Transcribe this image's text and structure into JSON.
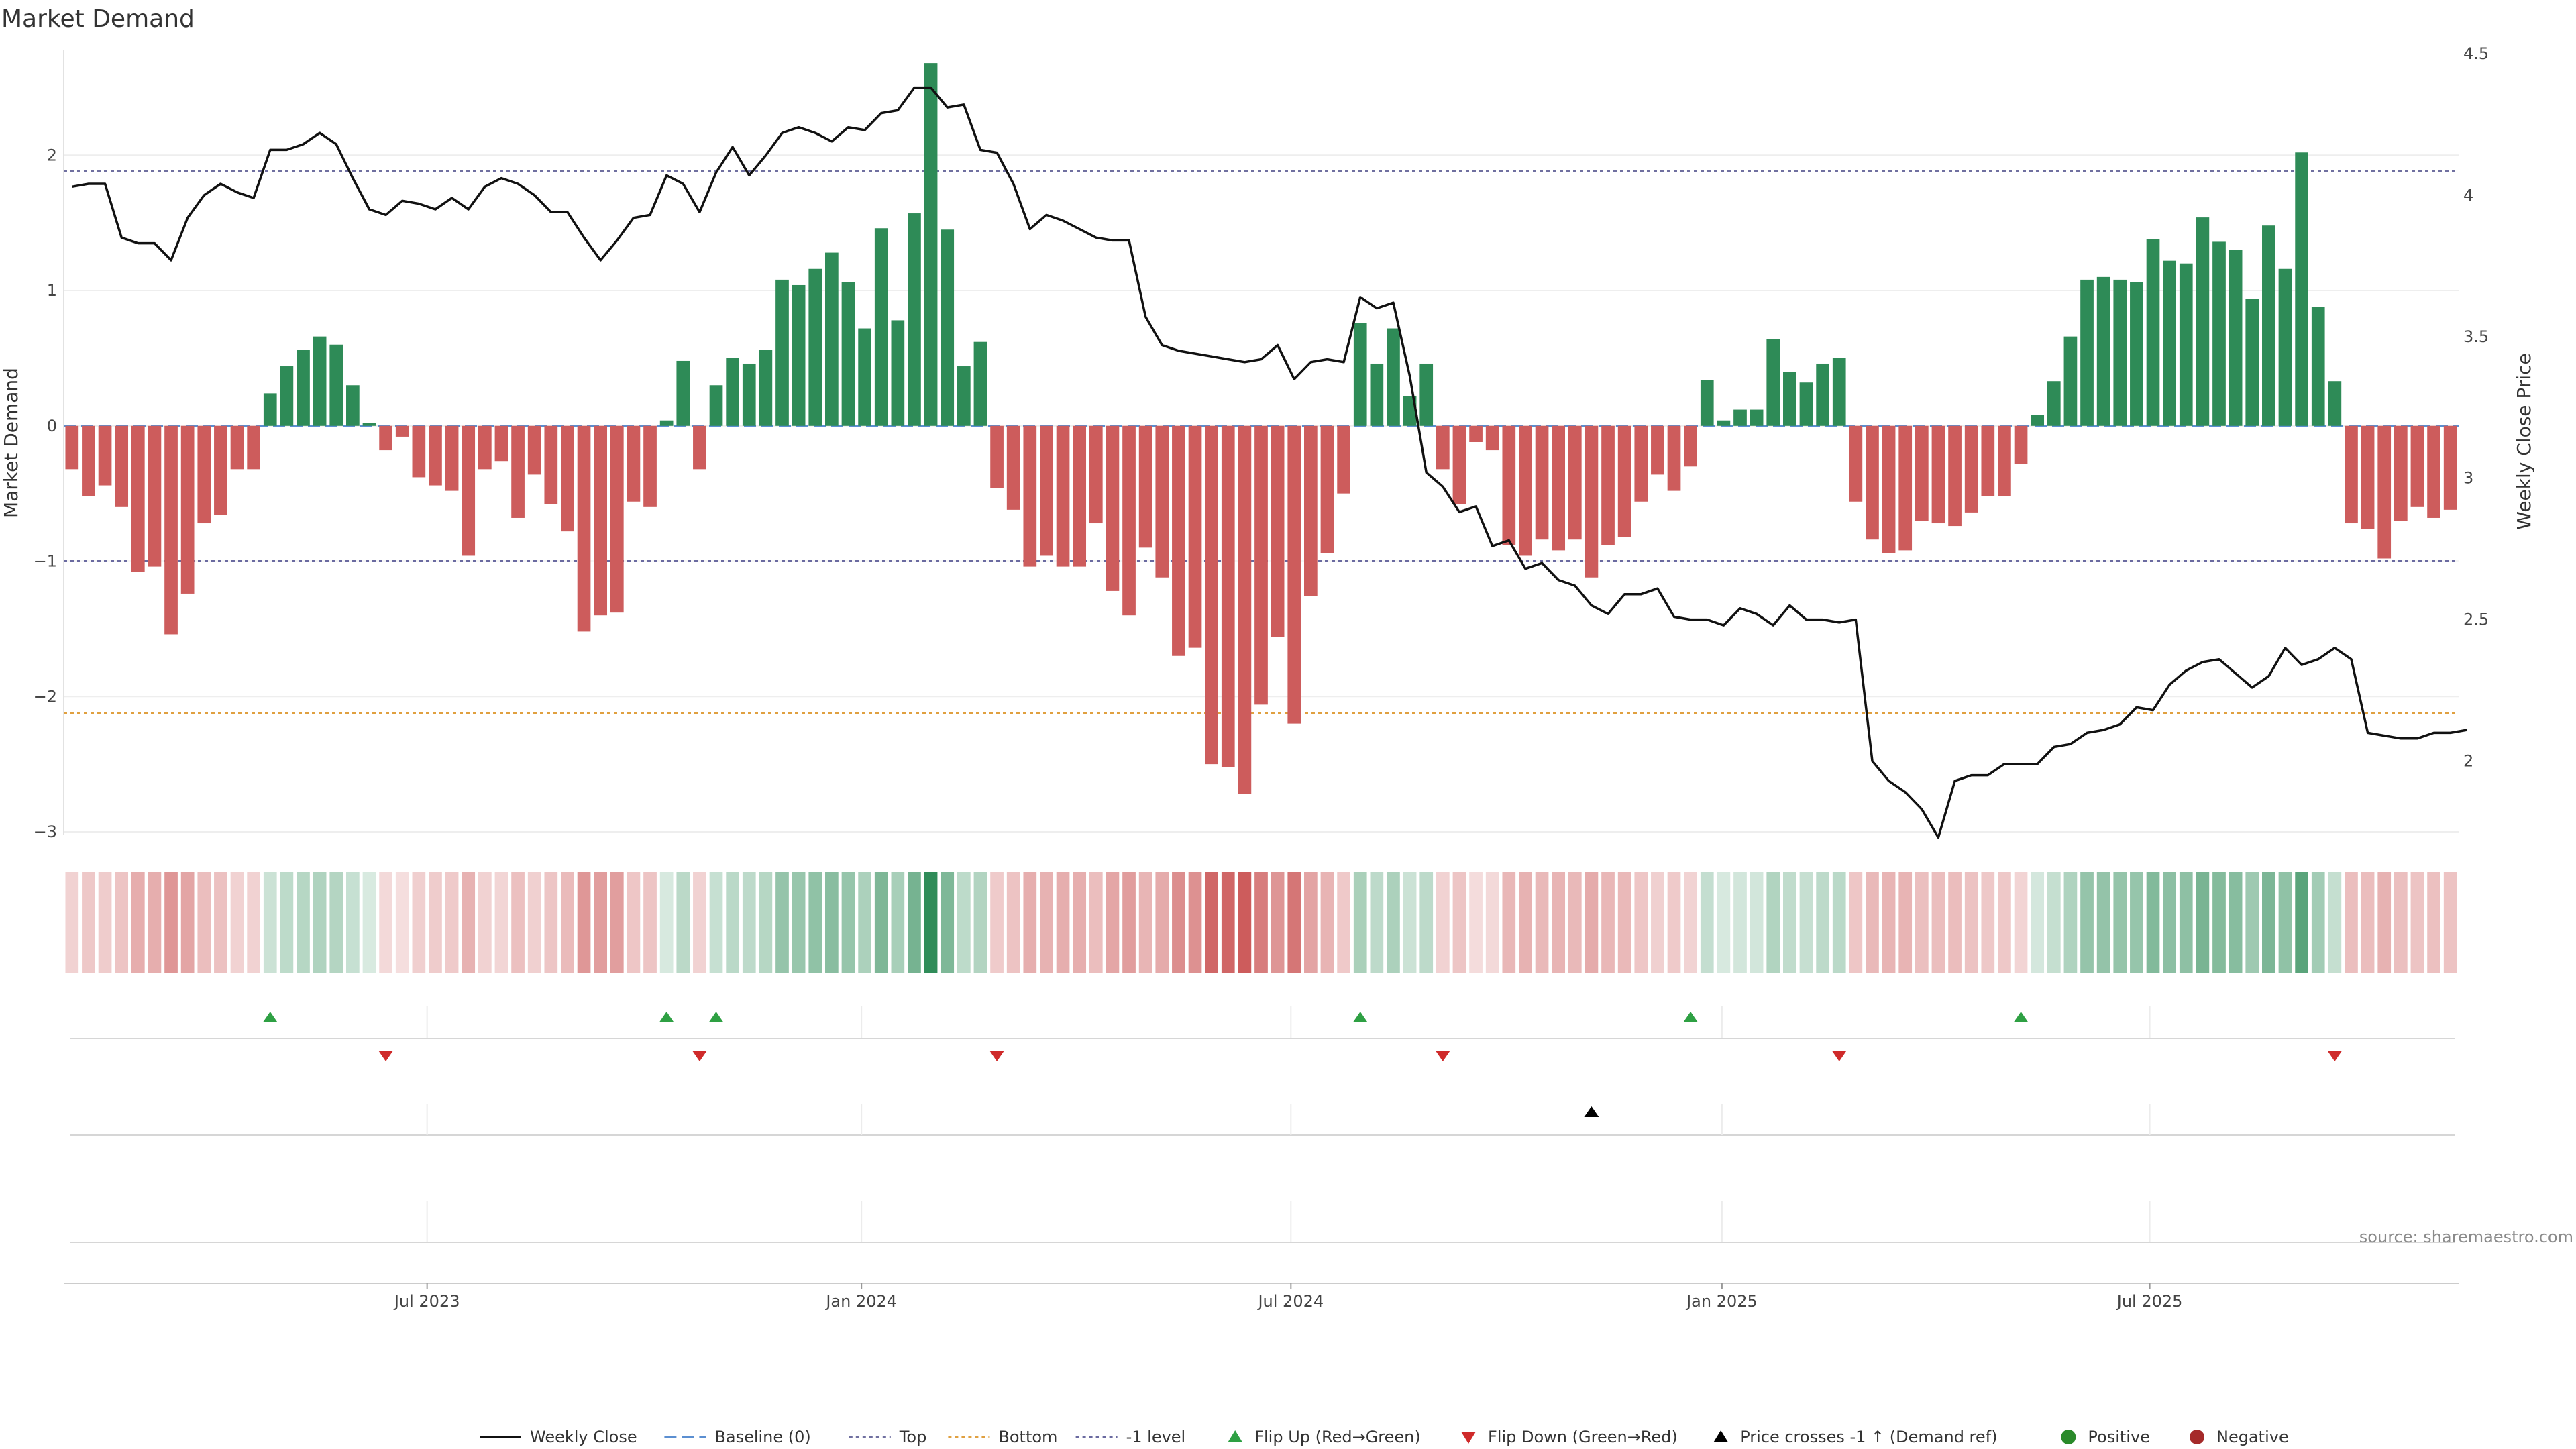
{
  "source_text": "source: sharemaestro.com",
  "chart_data": {
    "type": "bar",
    "title": "Market Demand",
    "ylabel": "Market Demand",
    "y2label": "Weekly Close Price",
    "ylim": [
      -3.0,
      2.75
    ],
    "y2lim": [
      1.75,
      4.5
    ],
    "yticks": [
      2,
      1,
      0,
      -1,
      -2,
      -3
    ],
    "yticks_labels": [
      "2",
      "1",
      "0",
      "−1",
      "−2",
      "−3"
    ],
    "y2ticks": [
      4.5,
      4,
      3.5,
      3,
      2.5,
      2
    ],
    "y2ticks_labels": [
      "4.5",
      "4",
      "3.5",
      "3",
      "2.5",
      "2"
    ],
    "xticks_labels": [
      "Jul 2023",
      "Jan 2024",
      "Jul 2024",
      "Jan 2025",
      "Jul 2025"
    ],
    "xticks_index": [
      22,
      48.3,
      74.3,
      100.4,
      126.3
    ],
    "reference_lines": {
      "top": 1.88,
      "bottom": -2.12,
      "minus_one": -1.0,
      "baseline": 0
    },
    "demand": [
      -0.32,
      -0.52,
      -0.44,
      -0.6,
      -1.08,
      -1.04,
      -1.54,
      -1.24,
      -0.72,
      -0.66,
      -0.32,
      -0.32,
      0.24,
      0.44,
      0.56,
      0.66,
      0.6,
      0.3,
      0.02,
      -0.18,
      -0.08,
      -0.38,
      -0.44,
      -0.48,
      -0.96,
      -0.32,
      -0.26,
      -0.68,
      -0.36,
      -0.58,
      -0.78,
      -1.52,
      -1.4,
      -1.38,
      -0.56,
      -0.6,
      0.04,
      0.48,
      -0.32,
      0.3,
      0.5,
      0.46,
      0.56,
      1.08,
      1.04,
      1.16,
      1.28,
      1.06,
      0.72,
      1.46,
      0.78,
      1.57,
      2.68,
      1.45,
      0.44,
      0.62,
      -0.46,
      -0.62,
      -1.04,
      -0.96,
      -1.04,
      -1.04,
      -0.72,
      -1.22,
      -1.4,
      -0.9,
      -1.12,
      -1.7,
      -1.64,
      -2.5,
      -2.52,
      -2.72,
      -2.06,
      -1.56,
      -2.2,
      -1.26,
      -0.94,
      -0.5,
      0.76,
      0.46,
      0.72,
      0.22,
      0.46,
      -0.32,
      -0.58,
      -0.12,
      -0.18,
      -0.88,
      -0.96,
      -0.84,
      -0.92,
      -0.84,
      -1.12,
      -0.88,
      -0.82,
      -0.56,
      -0.36,
      -0.48,
      -0.3,
      0.34,
      0.04,
      0.12,
      0.12,
      0.64,
      0.4,
      0.32,
      0.46,
      0.5,
      -0.56,
      -0.84,
      -0.94,
      -0.92,
      -0.7,
      -0.72,
      -0.74,
      -0.64,
      -0.52,
      -0.52,
      -0.28,
      0.08,
      0.33,
      0.66,
      1.08,
      1.1,
      1.08,
      1.06,
      1.38,
      1.22,
      1.2,
      1.54,
      1.36,
      1.3,
      0.94,
      1.48,
      1.16,
      2.02,
      0.88,
      0.33,
      -0.72,
      -0.76,
      -0.98,
      -0.7,
      -0.6,
      -0.68,
      -0.62
    ],
    "weekly_close": [
      4.03,
      4.04,
      4.04,
      3.85,
      3.83,
      3.83,
      3.77,
      3.92,
      4.0,
      4.04,
      4.01,
      3.99,
      4.16,
      4.16,
      4.18,
      4.22,
      4.18,
      4.06,
      3.95,
      3.93,
      3.98,
      3.97,
      3.95,
      3.99,
      3.95,
      4.03,
      4.06,
      4.04,
      4.0,
      3.94,
      3.94,
      3.85,
      3.77,
      3.84,
      3.92,
      3.93,
      4.07,
      4.04,
      3.94,
      4.08,
      4.17,
      4.07,
      4.14,
      4.22,
      4.24,
      4.22,
      4.19,
      4.24,
      4.23,
      4.29,
      4.3,
      4.38,
      4.38,
      4.31,
      4.32,
      4.16,
      4.15,
      4.04,
      3.88,
      3.93,
      3.91,
      3.88,
      3.85,
      3.84,
      3.84,
      3.57,
      3.47,
      3.45,
      3.44,
      3.43,
      3.42,
      3.41,
      3.42,
      3.47,
      3.35,
      3.41,
      3.42,
      3.41,
      3.64,
      3.6,
      3.62,
      3.36,
      3.02,
      2.97,
      2.88,
      2.9,
      2.76,
      2.78,
      2.68,
      2.7,
      2.64,
      2.62,
      2.55,
      2.52,
      2.59,
      2.59,
      2.61,
      2.51,
      2.5,
      2.5,
      2.48,
      2.54,
      2.52,
      2.48,
      2.55,
      2.5,
      2.5,
      2.49,
      2.5,
      2.0,
      1.93,
      1.89,
      1.83,
      1.73,
      1.93,
      1.95,
      1.95,
      1.99,
      1.99,
      1.99,
      2.05,
      2.06,
      2.1,
      2.11,
      2.13,
      2.19,
      2.18,
      2.27,
      2.32,
      2.35,
      2.36,
      2.31,
      2.26,
      2.3,
      2.4,
      2.34,
      2.36,
      2.4,
      2.36,
      2.1,
      2.09,
      2.08,
      2.08,
      2.1,
      2.1,
      2.11
    ],
    "flip_up_index": [
      12,
      36,
      39,
      78,
      98,
      118
    ],
    "flip_down_index": [
      19,
      38,
      56,
      83,
      107,
      137
    ],
    "price_cross_index": [
      92
    ],
    "legend": [
      "Weekly Close",
      "Baseline (0)",
      "Top",
      "Bottom",
      "-1 level",
      "Flip Up (Red→Green)",
      "Flip Down (Green→Red)",
      "Price crosses -1 ↑ (Demand ref)",
      "Positive",
      "Negative"
    ],
    "colors": {
      "positive": "#2e8b57",
      "negative": "#cd5c5c",
      "price": "#111111",
      "baseline": "#5b8fd1",
      "top": "#7070a0",
      "bottom": "#e0a040",
      "minus_one": "#6a6aa0",
      "flip_up": "#2ea043",
      "flip_down": "#cf2a2a",
      "price_cross": "#000000",
      "legend_positive": "#2a8a2a",
      "legend_negative": "#a52a2a"
    },
    "grid": true,
    "legend_position": "bottom"
  }
}
